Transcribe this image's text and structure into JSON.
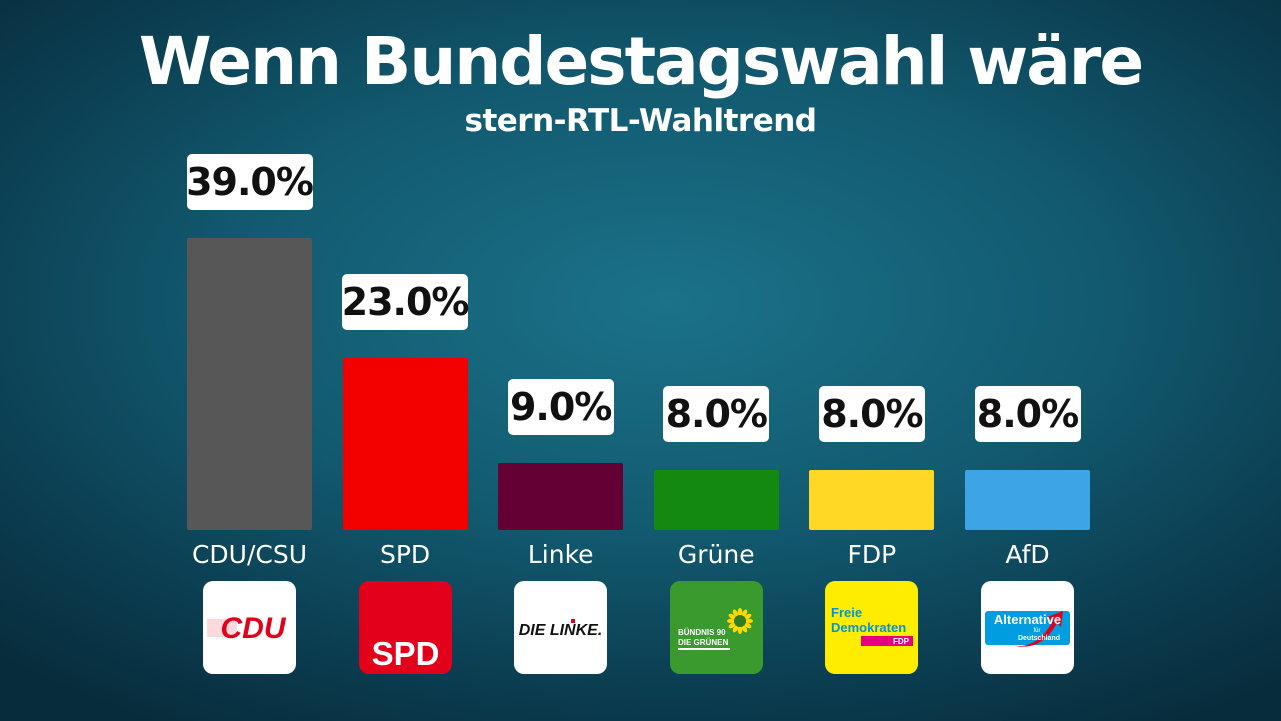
{
  "chart_data": {
    "type": "bar",
    "title": "Wenn Bundestagswahl wäre",
    "subtitle": "stern-RTL-Wahltrend",
    "categories": [
      "CDU/CSU",
      "SPD",
      "Linke",
      "Grüne",
      "FDP",
      "AfD"
    ],
    "values": [
      39.0,
      23.0,
      9.0,
      8.0,
      8.0,
      8.0
    ],
    "value_labels": [
      "39.0%",
      "23.0%",
      "9.0%",
      "8.0%",
      "8.0%",
      "8.0%"
    ],
    "colors": [
      "#575757",
      "#f20000",
      "#650034",
      "#138a0f",
      "#ffd825",
      "#3da5e6"
    ],
    "ylim": [
      0,
      39
    ],
    "grid": false,
    "legend": "none"
  },
  "logos": [
    {
      "name": "cdu-logo",
      "text": "CDU",
      "bg": "#ffffff",
      "fg": "#e3001b"
    },
    {
      "name": "spd-logo",
      "text": "SPD",
      "bg": "#e3001b",
      "fg": "#ffffff"
    },
    {
      "name": "linke-logo",
      "text": "DIE LINKE.",
      "bg": "#ffffff",
      "fg": "#111111",
      "accent": "#e3001b"
    },
    {
      "name": "gruene-logo",
      "text_line1": "BÜNDNIS 90",
      "text_line2": "DIE GRÜNEN",
      "bg": "#3a9a2d",
      "fg": "#ffffff",
      "accent": "#ffd800"
    },
    {
      "name": "fdp-logo",
      "text_line1": "Freie",
      "text_line2": "Demokraten",
      "text_line3": "FDP",
      "bg": "#ffed00",
      "fg": "#0095d9",
      "accent": "#e5007d"
    },
    {
      "name": "afd-logo",
      "text_line1": "Alternative",
      "text_line2": "für",
      "text_line3": "Deutschland",
      "bg": "#ffffff",
      "fg": "#ffffff",
      "accent": "#e3001b",
      "accent2": "#009ee0"
    }
  ]
}
